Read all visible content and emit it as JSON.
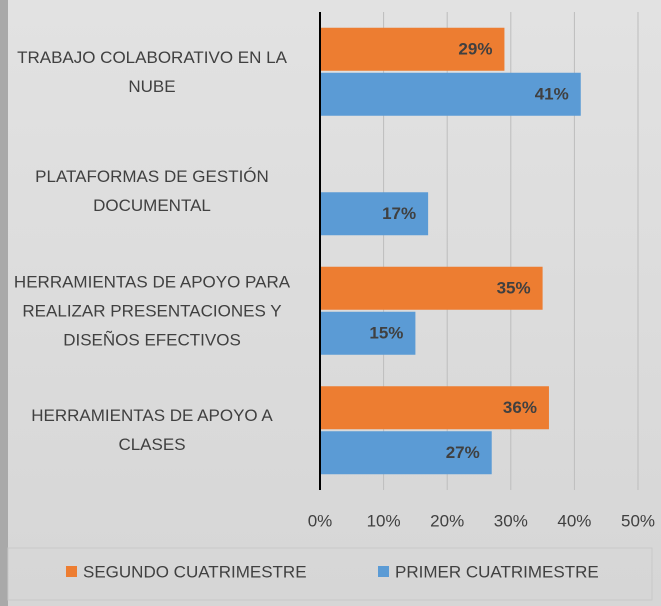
{
  "chart_data": {
    "type": "bar",
    "orientation": "horizontal",
    "categories": [
      "TRABAJO COLABORATIVO EN LA NUBE",
      "PLATAFORMAS DE GESTIÓN DOCUMENTAL",
      "HERRAMIENTAS DE APOYO PARA REALIZAR PRESENTACIONES Y DISEÑOS EFECTIVOS",
      "HERRAMIENTAS DE APOYO A CLASES"
    ],
    "series": [
      {
        "name": "SEGUNDO CUATRIMESTRE",
        "color": "#ed7d31",
        "values": [
          29,
          null,
          35,
          36
        ],
        "value_labels": [
          "29%",
          null,
          "35%",
          "36%"
        ]
      },
      {
        "name": "PRIMER CUATRIMESTRE",
        "color": "#5b9bd5",
        "values": [
          41,
          17,
          15,
          27
        ],
        "value_labels": [
          "41%",
          "17%",
          "15%",
          "27%"
        ]
      }
    ],
    "xlim": [
      0,
      50
    ],
    "xticks": [
      {
        "value": 0,
        "label": "0%"
      },
      {
        "value": 10,
        "label": "10%"
      },
      {
        "value": 20,
        "label": "20%"
      },
      {
        "value": 30,
        "label": "30%"
      },
      {
        "value": 40,
        "label": "40%"
      },
      {
        "value": 50,
        "label": "50%"
      }
    ],
    "grid": true,
    "legend": "bottom"
  }
}
